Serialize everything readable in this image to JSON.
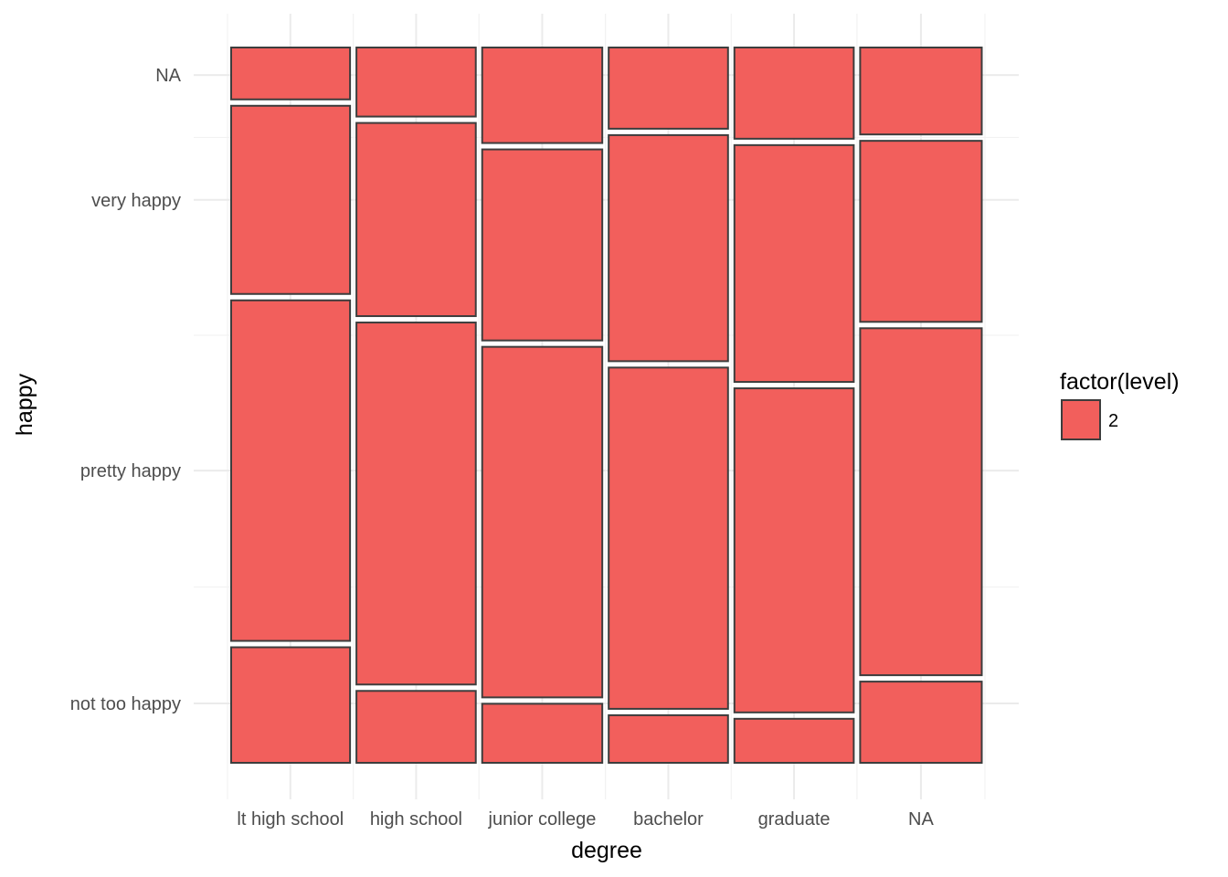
{
  "chart_data": {
    "type": "mosaic",
    "xlabel": "degree",
    "ylabel": "happy",
    "x_categories": [
      "lt high school",
      "high school",
      "junior college",
      "bachelor",
      "graduate",
      "NA"
    ],
    "x_display_labels": [
      "lt high school",
      "high school",
      "junior college",
      "bachelor",
      "graduate",
      "NA"
    ],
    "y_categories": [
      "not too happy",
      "pretty happy",
      "very happy",
      "NA"
    ],
    "x_widths": [
      0.166,
      0.166,
      0.167,
      0.166,
      0.166,
      0.169
    ],
    "y_proportions": [
      [
        0.166,
        0.485,
        0.272,
        0.077
      ],
      [
        0.105,
        0.515,
        0.279,
        0.101
      ],
      [
        0.087,
        0.499,
        0.276,
        0.138
      ],
      [
        0.071,
        0.486,
        0.325,
        0.118
      ],
      [
        0.066,
        0.462,
        0.34,
        0.132
      ],
      [
        0.118,
        0.494,
        0.262,
        0.126
      ]
    ],
    "fill_color": "#F25F5C",
    "stroke_color": "#3d3d3d",
    "legend": {
      "title": "factor(level)",
      "items": [
        {
          "label": "2",
          "color": "#F25F5C"
        }
      ],
      "position": "right"
    },
    "grid": true,
    "theme": "minimal"
  }
}
